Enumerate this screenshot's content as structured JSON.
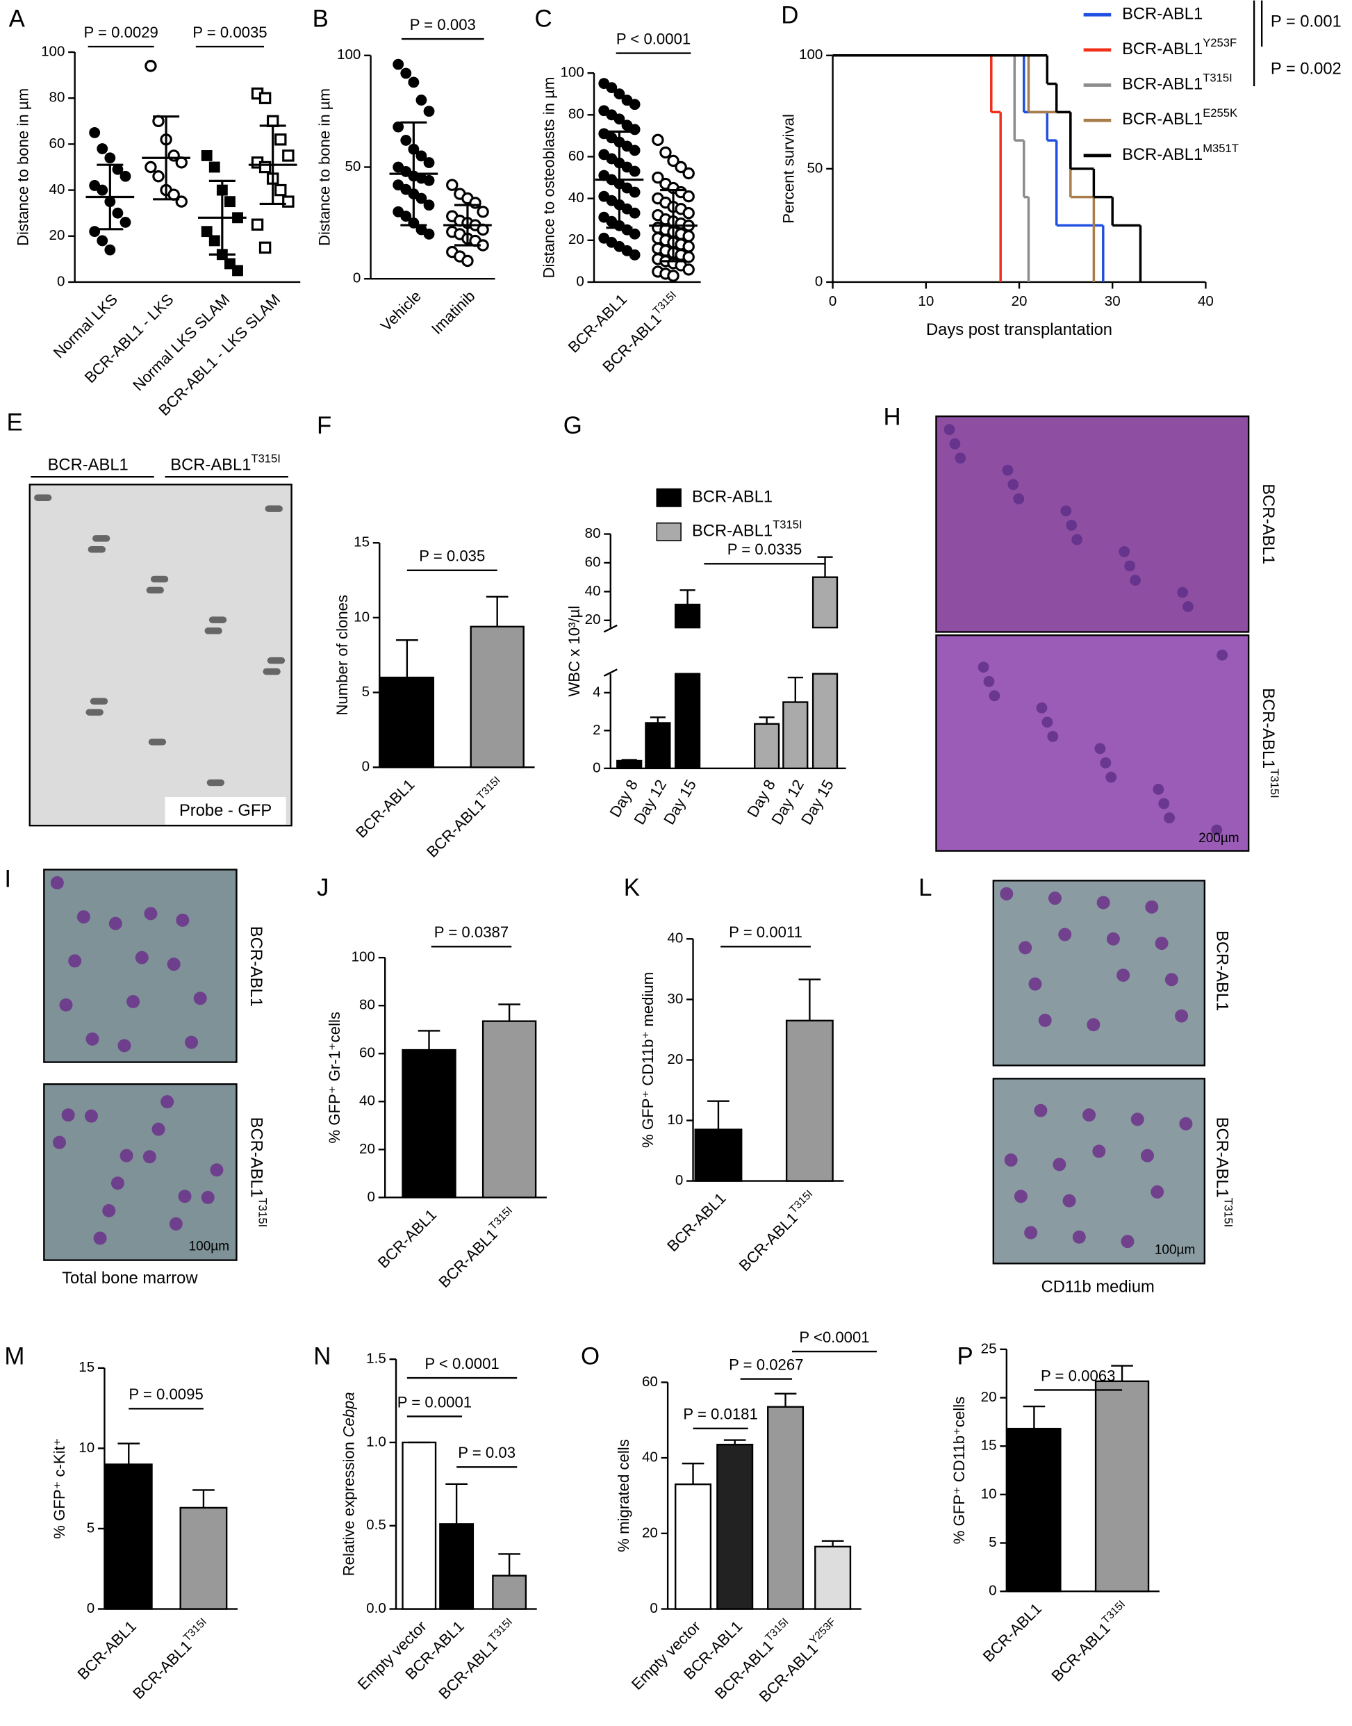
{
  "chart_data": [
    {
      "type": "dotplot",
      "panel": "A",
      "y_label": "Distance to bone in µm",
      "ylim": [
        0,
        100
      ],
      "yticks": [
        0,
        20,
        40,
        60,
        80,
        100
      ],
      "categories": [
        "Normal LKS",
        "BCR-ABL1 - LKS",
        "Normal LKS SLAM",
        "BCR-ABL1 - LKS SLAM"
      ],
      "markers": [
        "filled-circle",
        "open-circle",
        "filled-square",
        "open-square"
      ],
      "groups": [
        {
          "values": [
            65,
            58,
            54,
            49,
            46,
            42,
            40,
            35,
            30,
            26,
            22,
            18,
            14
          ],
          "mean": 37,
          "sd": 14
        },
        {
          "values": [
            94,
            70,
            62,
            55,
            52,
            50,
            46,
            40,
            38,
            35
          ],
          "mean": 54,
          "sd": 18
        },
        {
          "values": [
            55,
            50,
            40,
            35,
            28,
            22,
            18,
            12,
            8,
            5
          ],
          "mean": 28,
          "sd": 16
        },
        {
          "values": [
            82,
            80,
            70,
            62,
            55,
            52,
            50,
            45,
            40,
            35,
            25,
            15
          ],
          "mean": 51,
          "sd": 17
        }
      ],
      "annotations": [
        "P = 0.0029",
        "P = 0.0035"
      ]
    },
    {
      "type": "dotplot",
      "panel": "B",
      "y_label": "Distance to bone in µm",
      "ylim": [
        0,
        100
      ],
      "yticks": [
        0,
        50,
        100
      ],
      "categories": [
        "Vehicle",
        "Imatinib"
      ],
      "markers": [
        "filled-circle",
        "open-circle"
      ],
      "groups": [
        {
          "values": [
            96,
            92,
            88,
            80,
            75,
            68,
            62,
            58,
            55,
            52,
            50,
            48,
            46,
            45,
            44,
            42,
            40,
            38,
            36,
            33,
            30,
            28,
            25,
            22,
            20
          ],
          "mean": 47,
          "sd": 23
        },
        {
          "values": [
            42,
            38,
            36,
            34,
            30,
            28,
            26,
            25,
            24,
            22,
            21,
            20,
            18,
            17,
            15,
            12,
            10,
            8
          ],
          "mean": 24,
          "sd": 9
        }
      ],
      "annotations": [
        "P = 0.003"
      ]
    },
    {
      "type": "dotplot",
      "panel": "C",
      "y_label": "Distance to osteoblasts in µm",
      "ylim": [
        0,
        100
      ],
      "yticks": [
        0,
        20,
        40,
        60,
        80,
        100
      ],
      "categories": [
        "BCR-ABL1",
        {
          "base": "BCR-ABL1",
          "sup": "T315I"
        }
      ],
      "markers": [
        "filled-circle",
        "open-circle"
      ],
      "groups": [
        {
          "values": [
            95,
            93,
            90,
            87,
            85,
            82,
            80,
            78,
            75,
            73,
            71,
            69,
            67,
            65,
            63,
            61,
            59,
            57,
            55,
            53,
            51,
            49,
            47,
            45,
            43,
            41,
            39,
            37,
            35,
            33,
            31,
            29,
            27,
            25,
            23,
            21,
            19,
            17,
            15,
            13
          ],
          "mean": 49,
          "sd": 23
        },
        {
          "values": [
            68,
            62,
            58,
            55,
            52,
            50,
            47,
            45,
            43,
            41,
            40,
            38,
            36,
            35,
            33,
            32,
            30,
            29,
            28,
            27,
            26,
            25,
            24,
            23,
            22,
            21,
            20,
            19,
            18,
            17,
            16,
            15,
            14,
            13,
            12,
            11,
            10,
            9,
            8,
            6,
            5,
            4,
            3
          ],
          "mean": 27,
          "sd": 17
        }
      ],
      "annotations": [
        "P < 0.0001"
      ]
    },
    {
      "type": "survival",
      "panel": "D",
      "x_label": "Days post transplantation",
      "y_label": "Percent survival",
      "xlim": [
        0,
        40
      ],
      "xticks": [
        0,
        10,
        20,
        30,
        40
      ],
      "ylim": [
        0,
        100
      ],
      "yticks": [
        0,
        50,
        100
      ],
      "series": [
        {
          "name": "BCR-ABL1",
          "color": "#1f4fe0",
          "x": [
            0,
            20.5,
            23,
            24,
            29
          ],
          "values": [
            100,
            75,
            62.5,
            25,
            0
          ]
        },
        {
          "name": {
            "base": "BCR-ABL1",
            "sup": "Y253F"
          },
          "color": "#f0301a",
          "x": [
            0,
            17,
            18
          ],
          "values": [
            100,
            75,
            0
          ]
        },
        {
          "name": {
            "base": "BCR-ABL1",
            "sup": "T315I"
          },
          "color": "#8c8c8c",
          "x": [
            0,
            19.5,
            20.5,
            21
          ],
          "values": [
            100,
            62.5,
            37.5,
            0
          ]
        },
        {
          "name": {
            "base": "BCR-ABL1",
            "sup": "E255K"
          },
          "color": "#a87d4a",
          "x": [
            0,
            21,
            25.5,
            28
          ],
          "values": [
            100,
            75,
            37.5,
            0
          ]
        },
        {
          "name": {
            "base": "BCR-ABL1",
            "sup": "M351T"
          },
          "color": "#000000",
          "x": [
            0,
            23,
            24,
            25.5,
            28,
            30,
            33
          ],
          "values": [
            100,
            87.5,
            75,
            50,
            37.5,
            25,
            0
          ]
        }
      ],
      "annotations": [
        "P = 0.001",
        "P = 0.002"
      ]
    },
    {
      "type": "image",
      "panel": "E",
      "labels": [
        "BCR-ABL1",
        {
          "base": "BCR-ABL1",
          "sup": "T315I"
        },
        "Probe - GFP"
      ]
    },
    {
      "type": "bar",
      "panel": "F",
      "y_label": "Number of clones",
      "ylim": [
        0,
        15
      ],
      "yticks": [
        0,
        5,
        10,
        15
      ],
      "categories": [
        "BCR-ABL1",
        {
          "base": "BCR-ABL1",
          "sup": "T315I"
        }
      ],
      "values": [
        6,
        9.4
      ],
      "errors": [
        2.5,
        2
      ],
      "colors": [
        "#000000",
        "#999999"
      ],
      "annotations": [
        "P = 0.035"
      ]
    },
    {
      "type": "broken-bar",
      "panel": "G",
      "y_label": "WBC x 10³/µl",
      "segments": [
        {
          "ylim": [
            0,
            5
          ],
          "yticks": [
            0,
            2,
            4
          ]
        },
        {
          "ylim": [
            15,
            80
          ],
          "yticks": [
            20,
            40,
            60,
            80
          ]
        }
      ],
      "categories": [
        "Day 8",
        "Day 12",
        "Day 15"
      ],
      "series": [
        {
          "name": "BCR-ABL1",
          "color": "#000000",
          "values": [
            0.4,
            2.4,
            31
          ],
          "errors": [
            0.05,
            0.3,
            10
          ]
        },
        {
          "name": {
            "base": "BCR-ABL1",
            "sup": "T315I"
          },
          "color": "#aaaaaa",
          "values": [
            2.35,
            3.5,
            50
          ],
          "errors": [
            0.35,
            1.3,
            14
          ]
        }
      ],
      "annotations": [
        "P = 0.0335"
      ]
    },
    {
      "type": "image",
      "panel": "H",
      "labels": [
        "BCR-ABL1",
        {
          "base": "BCR-ABL1",
          "sup": "T315I"
        },
        "200µm"
      ]
    },
    {
      "type": "image",
      "panel": "I",
      "labels": [
        "BCR-ABL1",
        {
          "base": "BCR-ABL1",
          "sup": "T315I"
        },
        "100µm",
        "Total bone marrow"
      ]
    },
    {
      "type": "bar",
      "panel": "J",
      "y_label": "% GFP⁺ Gr-1⁺cells",
      "ylim": [
        0,
        100
      ],
      "yticks": [
        0,
        20,
        40,
        60,
        80,
        100
      ],
      "categories": [
        "BCR-ABL1",
        {
          "base": "BCR-ABL1",
          "sup": "T315I"
        }
      ],
      "values": [
        61.5,
        73.5
      ],
      "errors": [
        8,
        7
      ],
      "colors": [
        "#000000",
        "#999999"
      ],
      "annotations": [
        "P = 0.0387"
      ]
    },
    {
      "type": "bar",
      "panel": "K",
      "y_label": "% GFP⁺ CD11b⁺ medium",
      "ylim": [
        0,
        40
      ],
      "yticks": [
        0,
        10,
        20,
        30,
        40
      ],
      "categories": [
        "BCR-ABL1",
        {
          "base": "BCR-ABL1",
          "sup": "T315I"
        }
      ],
      "values": [
        8.5,
        26.5
      ],
      "errors": [
        4.7,
        6.8
      ],
      "colors": [
        "#000000",
        "#999999"
      ],
      "annotations": [
        "P = 0.0011"
      ]
    },
    {
      "type": "image",
      "panel": "L",
      "labels": [
        "BCR-ABL1",
        {
          "base": "BCR-ABL1",
          "sup": "T315I"
        },
        "100µm",
        "CD11b medium"
      ]
    },
    {
      "type": "bar",
      "panel": "M",
      "y_label": "% GFP⁺ c-Kit⁺",
      "ylim": [
        0,
        15
      ],
      "yticks": [
        0,
        5,
        10,
        15
      ],
      "categories": [
        "BCR-ABL1",
        {
          "base": "BCR-ABL1",
          "sup": "T315I"
        }
      ],
      "values": [
        9,
        6.3
      ],
      "errors": [
        1.3,
        1.1
      ],
      "colors": [
        "#000000",
        "#999999"
      ],
      "annotations": [
        "P = 0.0095"
      ]
    },
    {
      "type": "bar",
      "panel": "N",
      "y_label": {
        "base": "Relative expression",
        "em": "Cebpa"
      },
      "ylim": [
        0,
        1.5
      ],
      "yticks": [
        {
          "value": 0,
          "label": "0.0"
        },
        0.5,
        {
          "value": 1,
          "label": "1.0"
        },
        1.5
      ],
      "categories": [
        "Empty vector",
        "BCR-ABL1",
        {
          "base": "BCR-ABL1",
          "sup": "T315I"
        }
      ],
      "values": [
        1,
        0.51,
        0.2
      ],
      "errors": [
        0,
        0.24,
        0.13
      ],
      "colors": [
        "#ffffff",
        "#000000",
        "#999999"
      ],
      "annotations": [
        "P < 0.0001",
        "P = 0.0001",
        "P = 0.03"
      ]
    },
    {
      "type": "bar",
      "panel": "O",
      "y_label": "% migrated cells",
      "ylim": [
        0,
        60
      ],
      "yticks": [
        0,
        20,
        40,
        60
      ],
      "categories": [
        "Empty vector",
        "BCR-ABL1",
        {
          "base": "BCR-ABL1",
          "sup": "T315I"
        },
        {
          "base": "BCR-ABL1",
          "sup": "Y253F"
        }
      ],
      "values": [
        33,
        43.5,
        53.5,
        16.5
      ],
      "errors": [
        5.5,
        1.2,
        3.5,
        1.5
      ],
      "colors": [
        "#ffffff",
        "#222222",
        "#999999",
        "#dddddd"
      ],
      "annotations": [
        "P = 0.0181",
        "P = 0.0267",
        "P <0.0001"
      ]
    },
    {
      "type": "bar",
      "panel": "P",
      "y_label": "% GFP⁺ CD11b⁺cells",
      "ylim": [
        0,
        25
      ],
      "yticks": [
        0,
        5,
        10,
        15,
        20,
        25
      ],
      "categories": [
        "BCR-ABL1",
        {
          "base": "BCR-ABL1",
          "sup": "T315I"
        }
      ],
      "values": [
        16.8,
        21.7
      ],
      "errors": [
        2.3,
        1.6
      ],
      "colors": [
        "#000000",
        "#999999"
      ],
      "annotations": [
        "P = 0.0063"
      ]
    }
  ]
}
